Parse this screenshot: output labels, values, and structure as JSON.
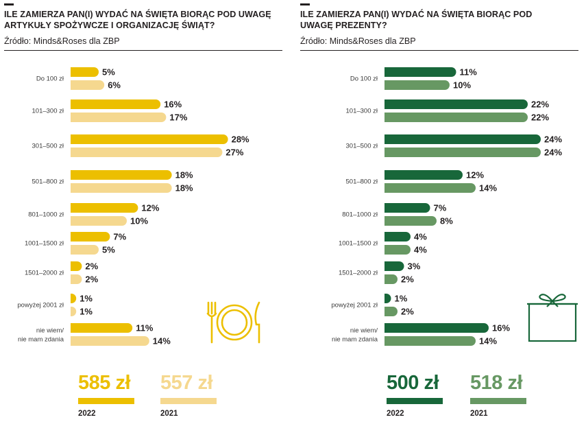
{
  "colors": {
    "food_2022": "#ecbf00",
    "food_2021": "#f5d88f",
    "gifts_2022": "#18673a",
    "gifts_2021": "#679863",
    "text": "#231f20"
  },
  "panels": [
    {
      "title": "ILE ZAMIERZA PAN(I) WYDAĆ NA ŚWIĘTA BIORĄC POD UWAGĘ ARTYKUŁY SPOŻYWCZE I ORGANIZACJĘ ŚWIĄT?",
      "source": "Źródło: Minds&Roses dla ZBP",
      "icon": "plate-cutlery-icon",
      "summary": [
        {
          "value": "585 zł",
          "year": "2022",
          "color": "#ecbf00"
        },
        {
          "value": "557 zł",
          "year": "2021",
          "color": "#f5d88f"
        }
      ]
    },
    {
      "title": "ILE ZAMIERZA PAN(I) WYDAĆ NA ŚWIĘTA BIORĄC POD UWAGĘ PREZENTY?",
      "source": "Źródło: Minds&Roses dla ZBP",
      "icon": "gift-box-icon",
      "summary": [
        {
          "value": "500 zł",
          "year": "2022",
          "color": "#18673a"
        },
        {
          "value": "518 zł",
          "year": "2021",
          "color": "#679863"
        }
      ]
    }
  ],
  "chart_data": [
    {
      "type": "bar",
      "orientation": "horizontal",
      "categories": [
        "Do 100 zł",
        "101–300 zł",
        "301–500 zł",
        "501–800 zł",
        "801–1000 zł",
        "1001–1500 zł",
        "1501–2000 zł",
        "powyżej 2001 zł",
        "nie wiem/\nnie mam zdania"
      ],
      "series": [
        {
          "name": "2022",
          "color": "#ecbf00",
          "values": [
            5,
            16,
            28,
            18,
            12,
            7,
            2,
            1,
            11
          ],
          "labels": [
            "5%",
            "16%",
            "28%",
            "18%",
            "12%",
            "7%",
            "2%",
            "1%",
            "11%"
          ]
        },
        {
          "name": "2021",
          "color": "#f5d88f",
          "values": [
            6,
            17,
            27,
            18,
            10,
            5,
            2,
            1,
            14
          ],
          "labels": [
            "6%",
            "17%",
            "27%",
            "18%",
            "10%",
            "5%",
            "2%",
            "1%",
            "14%"
          ]
        }
      ],
      "unit": "%"
    },
    {
      "type": "bar",
      "orientation": "horizontal",
      "categories": [
        "Do 100 zł",
        "101–300 zł",
        "301–500 zł",
        "501–800 zł",
        "801–1000 zł",
        "1001–1500 zł",
        "1501–2000 zł",
        "powyżej 2001 zł",
        "nie wiem/\nnie mam zdania"
      ],
      "series": [
        {
          "name": "2022",
          "color": "#18673a",
          "values": [
            11,
            22,
            24,
            12,
            7,
            4,
            3,
            1,
            16
          ],
          "labels": [
            "11%",
            "22%",
            "24%",
            "12%",
            "7%",
            "4%",
            "3%",
            "1%",
            "16%"
          ]
        },
        {
          "name": "2021",
          "color": "#679863",
          "values": [
            10,
            22,
            24,
            14,
            8,
            4,
            2,
            2,
            14
          ],
          "labels": [
            "10%",
            "22%",
            "24%",
            "14%",
            "8%",
            "4%",
            "2%",
            "2%",
            "14%"
          ]
        }
      ],
      "unit": "%"
    }
  ]
}
